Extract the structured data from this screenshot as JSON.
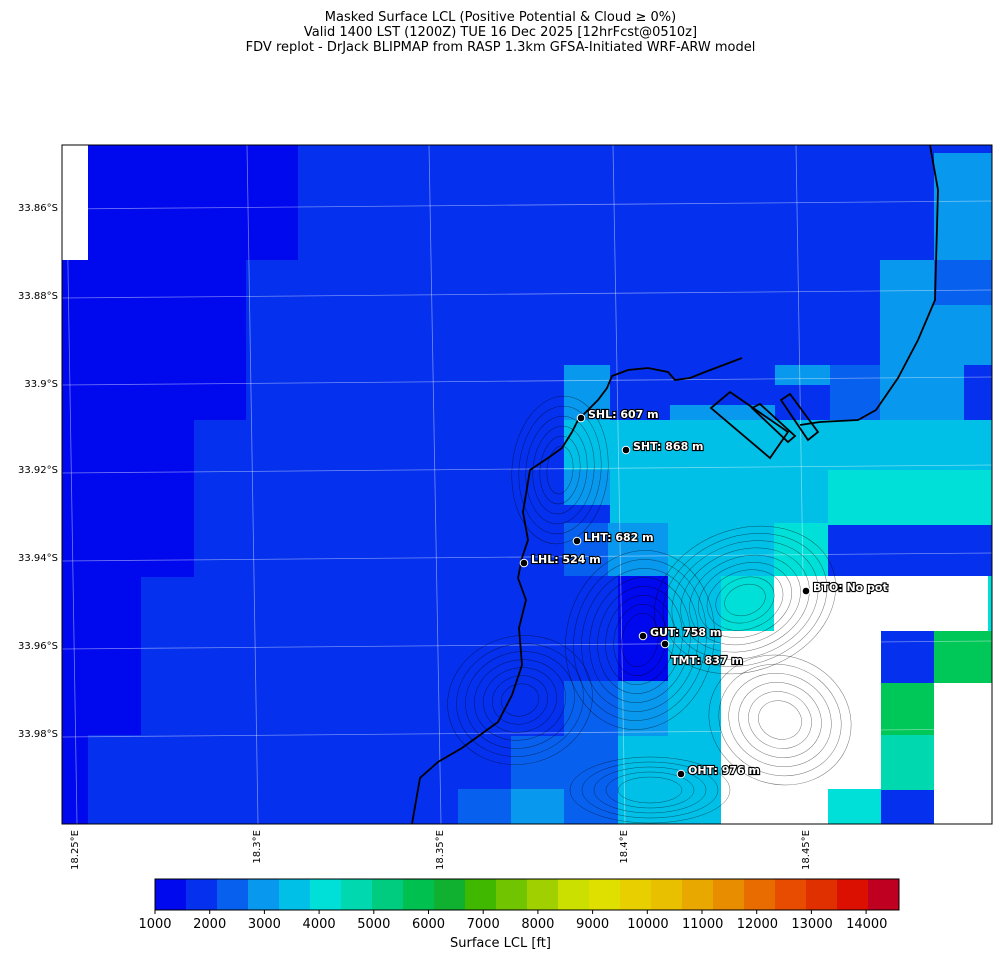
{
  "title": {
    "line1": "Masked Surface LCL (Positive Potential & Cloud ≥ 0%)",
    "line2": "Valid 1400 LST (1200Z) TUE 16 Dec 2025 [12hrFcst@0510z]",
    "line3": "FDV replot - DrJack BLIPMAP from RASP 1.3km GFSA-Initiated WRF-ARW model"
  },
  "axes": {
    "lat_labels": [
      "33.86°S",
      "33.88°S",
      "33.9°S",
      "33.92°S",
      "33.94°S",
      "33.96°S",
      "33.98°S"
    ],
    "lon_labels": [
      "18.25°E",
      "18.3°E",
      "18.35°E",
      "18.4°E",
      "18.45°E"
    ]
  },
  "stations": [
    {
      "label": "SHL: 607 m"
    },
    {
      "label": "SHT: 868 m"
    },
    {
      "label": "LHT: 682 m"
    },
    {
      "label": "LHL: 524 m"
    },
    {
      "label": "BTO: No pot"
    },
    {
      "label": "GUT: 758 m"
    },
    {
      "label": "TMT: 837 m"
    },
    {
      "label": "OHT: 976 m"
    }
  ],
  "colorbar": {
    "label": "Surface LCL [ft]",
    "ticks": [
      "1000",
      "2000",
      "3000",
      "4000",
      "5000",
      "6000",
      "7000",
      "8000",
      "9000",
      "10000",
      "11000",
      "12000",
      "13000",
      "14000"
    ],
    "colors": [
      "#0008ee",
      "#0430ee",
      "#0860ee",
      "#0898ee",
      "#00c0e8",
      "#00e0d8",
      "#00d8b0",
      "#00cc80",
      "#00c050",
      "#10b030",
      "#40b800",
      "#70c400",
      "#a0d000",
      "#cce000",
      "#e0e000",
      "#e8d000",
      "#e8c000",
      "#e8a800",
      "#e88c00",
      "#e86c00",
      "#e84c00",
      "#e03000",
      "#dc1000",
      "#c00020"
    ]
  }
}
